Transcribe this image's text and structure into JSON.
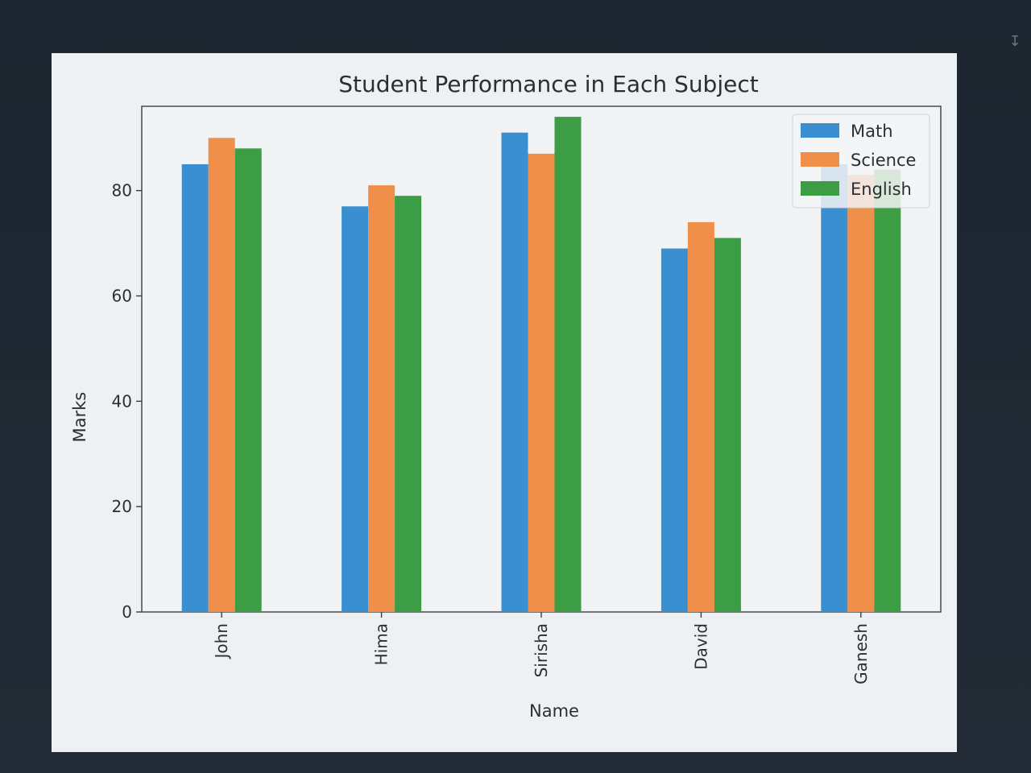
{
  "figure": {
    "download_icon": "download-icon"
  },
  "chart_data": {
    "type": "bar",
    "title": "Student Performance in Each Subject",
    "xlabel": "Name",
    "ylabel": "Marks",
    "categories": [
      "John",
      "Hima",
      "Sirisha",
      "David",
      "Ganesh"
    ],
    "series": [
      {
        "name": "Math",
        "color": "#3a8fd0",
        "values": [
          85,
          77,
          91,
          69,
          85
        ]
      },
      {
        "name": "Science",
        "color": "#ef8f4a",
        "values": [
          90,
          81,
          87,
          74,
          83
        ]
      },
      {
        "name": "English",
        "color": "#3c9d44",
        "values": [
          88,
          79,
          94,
          71,
          84
        ]
      }
    ],
    "yticks": [
      0,
      20,
      40,
      60,
      80
    ],
    "ylim": [
      0,
      96
    ],
    "legend": "top-right",
    "grid": false
  }
}
